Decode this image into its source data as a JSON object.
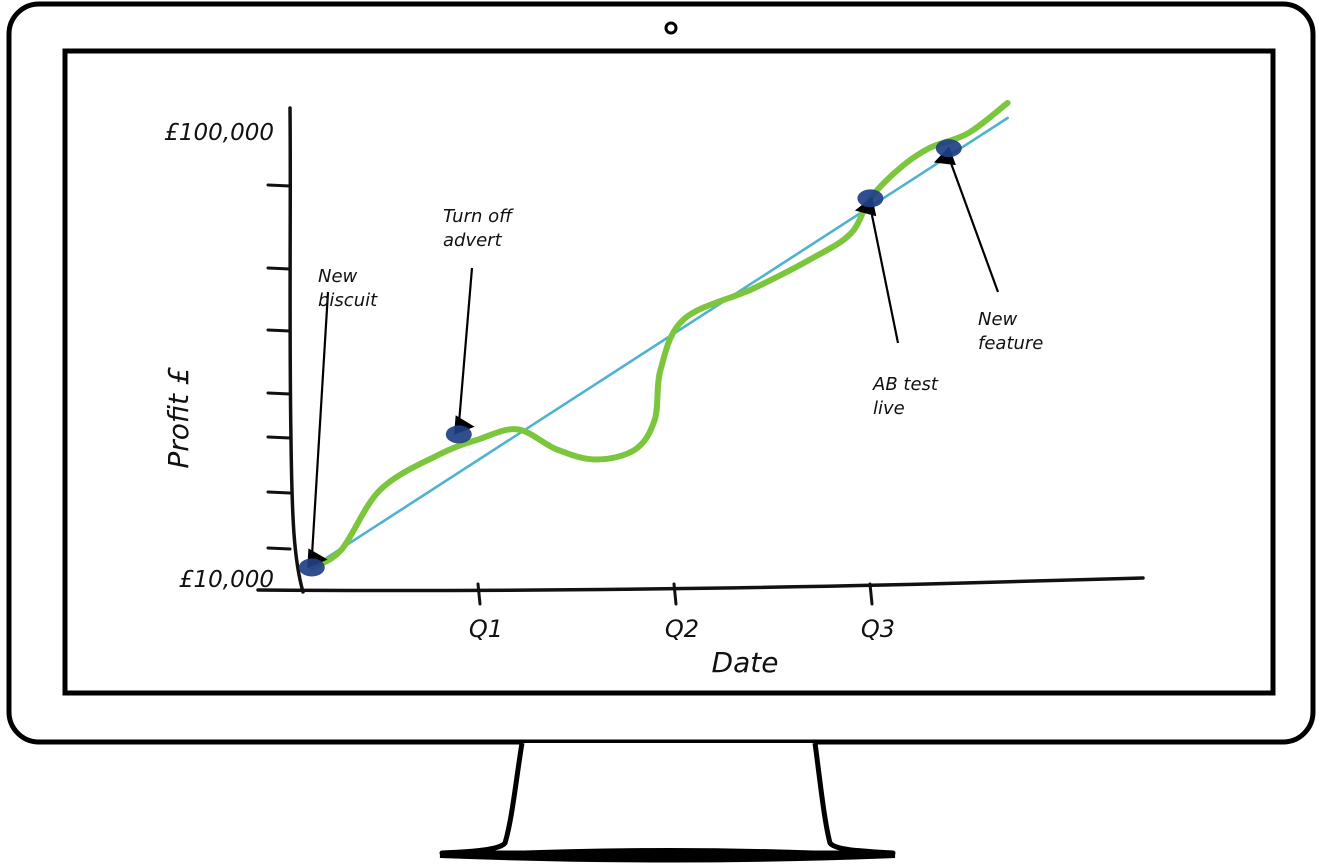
{
  "chart_data": {
    "type": "line",
    "x_ticks": [
      "Q1",
      "Q2",
      "Q3"
    ],
    "y_ticks": [
      "£100,000",
      "£10,000"
    ],
    "ylim": [
      10000,
      100000
    ],
    "xlabel": "Date",
    "ylabel": "Profit £",
    "series": [
      {
        "color": "#7cc63e",
        "x": [
          0.05,
          0.2,
          0.4,
          0.7,
          0.9,
          1.1,
          1.3,
          1.5,
          1.7,
          1.8,
          1.83,
          1.95,
          2.3,
          2.6,
          2.8,
          2.9,
          3.05,
          3.2,
          3.4,
          3.6
        ],
        "y": [
          10500,
          14000,
          26000,
          33000,
          36000,
          38000,
          34000,
          32000,
          34000,
          40000,
          50000,
          60000,
          66000,
          72000,
          77000,
          84000,
          90000,
          94000,
          97000,
          103000
        ]
      },
      {
        "color": "#4fb3cf",
        "x": [
          0.05,
          3.6
        ],
        "y": [
          10500,
          100000
        ]
      }
    ],
    "events": [
      {
        "label": [
          "New",
          "biscuit"
        ],
        "x": 0.05,
        "y": 10500
      },
      {
        "label": [
          "Turn off",
          "advert"
        ],
        "x": 0.8,
        "y": 37000
      },
      {
        "label": [
          "AB test",
          "live"
        ],
        "x": 2.9,
        "y": 84000
      },
      {
        "label": [
          "New",
          "feature"
        ],
        "x": 3.3,
        "y": 94000
      }
    ]
  }
}
